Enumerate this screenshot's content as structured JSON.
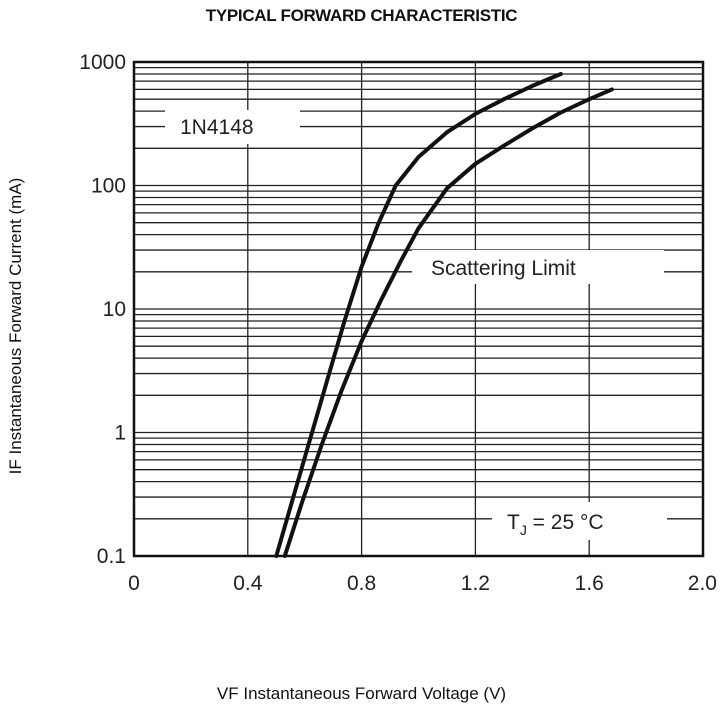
{
  "chart_data": {
    "type": "line",
    "title": "TYPICAL FORWARD CHARACTERISTIC",
    "xlabel": "VF  Instantaneous Forward Voltage (V)",
    "ylabel": "IF Instantaneous Forward Current (mA)",
    "xlim": [
      0,
      2.0
    ],
    "ylim": [
      0.1,
      1000
    ],
    "yscale": "log",
    "grid": true,
    "x_ticks": [
      "0",
      "0.4",
      "0.8",
      "1.2",
      "1.6",
      "2.0"
    ],
    "y_ticks": [
      "0.1",
      "1",
      "10",
      "100",
      "1000"
    ],
    "annotations": {
      "device": "1N4148",
      "scatter": "Scattering Limit",
      "temp_prefix": "T",
      "temp_sub": "J",
      "temp_suffix": " = 25 °C"
    },
    "series": [
      {
        "x": [
          0.5,
          0.56,
          0.62,
          0.68,
          0.74,
          0.8,
          0.86,
          0.92,
          1.0,
          1.1,
          1.2,
          1.3,
          1.4,
          1.5
        ],
        "y": [
          0.1,
          0.3,
          0.9,
          2.7,
          8.0,
          22,
          50,
          100,
          170,
          270,
          380,
          500,
          640,
          800
        ]
      },
      {
        "x": [
          0.53,
          0.59,
          0.66,
          0.73,
          0.8,
          0.87,
          0.94,
          1.0,
          1.1,
          1.2,
          1.3,
          1.4,
          1.5,
          1.6,
          1.68
        ],
        "y": [
          0.1,
          0.27,
          0.8,
          2.2,
          5.5,
          12,
          25,
          45,
          95,
          150,
          210,
          290,
          390,
          500,
          600
        ]
      }
    ]
  }
}
